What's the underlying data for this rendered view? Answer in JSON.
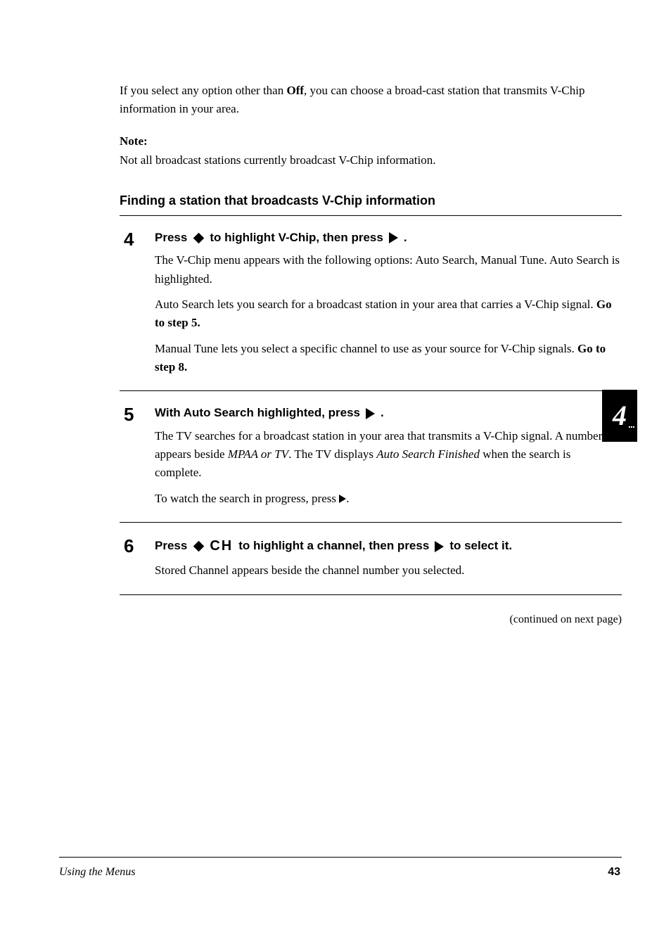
{
  "colors": {
    "text": "#000000",
    "bg": "#ffffff"
  },
  "typography": {
    "body_family": "Times New Roman",
    "ui_family": "Arial",
    "body_size_pt": 12,
    "subheading_size_pt": 13,
    "lead_size_pt": 13,
    "stepnum_size_pt": 19
  },
  "intro": {
    "prefix": "If you select any option other than ",
    "bold": "Off",
    "suffix": ", you can choose a broad-cast station that transmits V-Chip information in your area."
  },
  "note": {
    "label": "Note:",
    "body": "Not all broadcast stations currently broadcast V-Chip information."
  },
  "subheading": "Finding a station that broadcasts V-Chip information",
  "step4": {
    "num": "4",
    "lead_press": "Press ",
    "lead_mid": " to highlight V-Chip, then press ",
    "lead_end": ".",
    "icons": {
      "diamond": "vertical-diamond-icon",
      "play": "play-right-icon"
    },
    "desc_1": "The V-Chip menu appears with the following options: Auto Search, Manual Tune. Auto Search is highlighted.",
    "desc_2a": "Auto Search lets you search for a broadcast station in your area that carries a V-Chip signal. ",
    "desc_2b_bold": "Go to step 5.",
    "desc_3a": "Manual Tune lets you select a specific channel to use as your source for V-Chip signals. ",
    "desc_3b_bold": "Go to step 8."
  },
  "step5": {
    "num": "5",
    "lead_a": "With Auto Search highlighted, press ",
    "lead_b": ".",
    "icon_play": "play-right-icon",
    "desc_a": "The TV searches for a broadcast station in your area that transmits a V-Chip signal. A number appears beside ",
    "desc_b_italic": "MPAA or TV",
    "desc_c": ". The TV displays ",
    "desc_d_italic": "Auto Search Finished",
    "desc_e": " when the search is complete.",
    "desc_2_prefix": "To watch the search in progress, press ",
    "desc_2_suffix": "."
  },
  "step6": {
    "num": "6",
    "lead_a": "Press ",
    "lead_b": " to highlight a channel, then press ",
    "lead_c": " to select it.",
    "ch_label": "CH",
    "icons": {
      "diamond": "vertical-diamond-icon",
      "play": "play-right-icon"
    },
    "desc": "Stored Channel appears beside the channel number you selected."
  },
  "continued": "(continued on next page)",
  "side_tab": "4",
  "footer": {
    "title": "Using the Menus",
    "page": "43"
  }
}
